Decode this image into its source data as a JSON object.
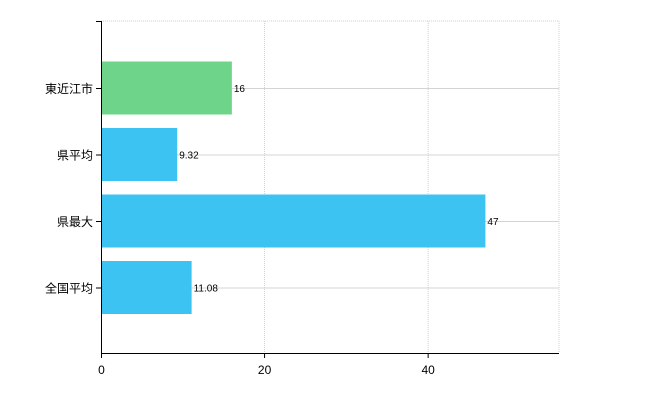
{
  "chart_data": {
    "type": "bar",
    "orientation": "horizontal",
    "categories": [
      "東近江市",
      "県平均",
      "県最大",
      "全国平均"
    ],
    "values": [
      16,
      9.32,
      47,
      11.08
    ],
    "value_labels": [
      "16",
      "9.32",
      "47",
      "11.08"
    ],
    "bar_colors": [
      "#6dd48a",
      "#3cc3f2",
      "#3cc3f2",
      "#3cc3f2"
    ],
    "xlim": [
      0,
      56
    ],
    "xticks": [
      0,
      20,
      40
    ],
    "xtick_labels": [
      "0",
      "20",
      "40"
    ],
    "grid": true,
    "grid_style": "dotted",
    "title": "",
    "xlabel": "",
    "ylabel": ""
  }
}
